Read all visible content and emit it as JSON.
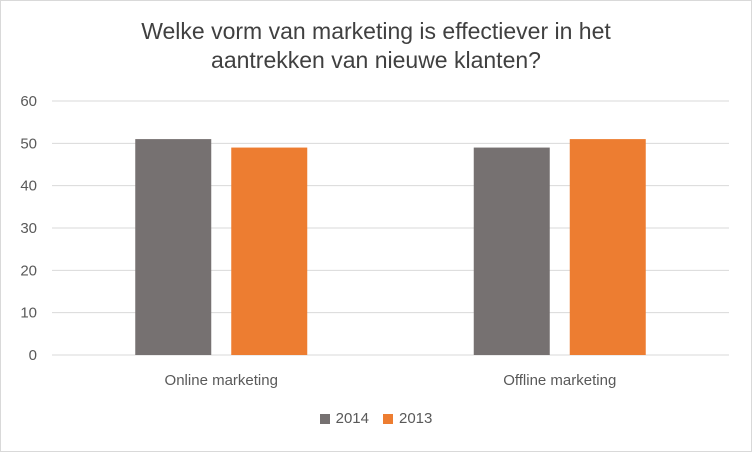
{
  "chart_data": {
    "type": "bar",
    "title": "Welke vorm van marketing is effectiever in het\naantrekken van nieuwe klanten?",
    "xlabel": "",
    "ylabel": "",
    "categories": [
      "Online marketing",
      "Offline marketing"
    ],
    "series": [
      {
        "name": "2014",
        "values": [
          51,
          49
        ],
        "color": "#767171"
      },
      {
        "name": "2013",
        "values": [
          49,
          51
        ],
        "color": "#ed7d31"
      }
    ],
    "ylim": [
      0,
      60
    ],
    "yticks": [
      0,
      10,
      20,
      30,
      40,
      50,
      60
    ],
    "grid": true,
    "legend_position": "bottom"
  }
}
